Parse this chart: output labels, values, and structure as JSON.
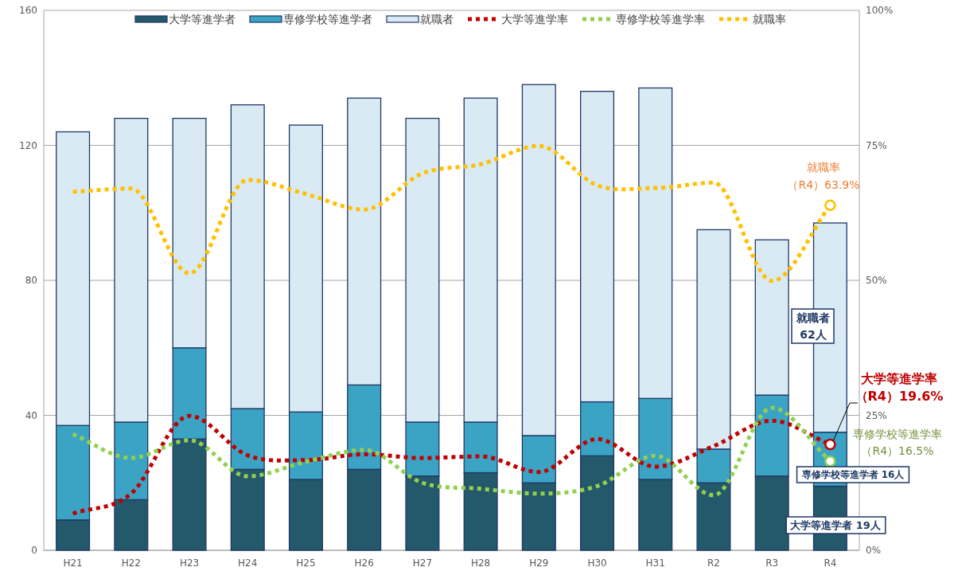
{
  "chart_data": {
    "type": "bar",
    "stacked": true,
    "categories": [
      "H21",
      "H22",
      "H23",
      "H24",
      "H25",
      "H26",
      "H27",
      "H28",
      "H29",
      "H30",
      "H31",
      "R2",
      "R3",
      "R4"
    ],
    "series": [
      {
        "name": "大学等進学者",
        "color": "#24596b",
        "values": [
          9,
          15,
          33,
          24,
          21,
          24,
          22,
          23,
          20,
          28,
          21,
          20,
          22,
          19
        ]
      },
      {
        "name": "専修学校等進学者",
        "color": "#3ba3c4",
        "values": [
          28,
          23,
          27,
          18,
          20,
          25,
          16,
          15,
          14,
          16,
          24,
          10,
          24,
          16
        ]
      },
      {
        "name": "就職者",
        "color": "#daeaf5",
        "values": [
          87,
          90,
          68,
          90,
          85,
          85,
          90,
          96,
          104,
          92,
          92,
          65,
          46,
          62
        ]
      },
      {
        "name": "大学等進学率",
        "type": "line",
        "axis": "y2",
        "color": "#c00000",
        "line_style": "dotted",
        "values": [
          6.8,
          10.5,
          24.9,
          17.6,
          16.7,
          17.8,
          17.1,
          17.4,
          14.5,
          20.6,
          15.5,
          19.3,
          24.0,
          19.6
        ]
      },
      {
        "name": "専修学校等進学率",
        "type": "line",
        "axis": "y2",
        "color": "#92d050",
        "line_style": "dotted",
        "values": [
          21.5,
          17.1,
          20.4,
          13.7,
          16.4,
          18.6,
          12.5,
          11.4,
          10.5,
          11.9,
          17.5,
          10.2,
          26.4,
          16.5
        ]
      },
      {
        "name": "就職率",
        "type": "line",
        "axis": "y2",
        "color": "#ffc000",
        "line_style": "dotted",
        "values": [
          66.4,
          67,
          51.3,
          68.6,
          66,
          63.1,
          69.8,
          71.5,
          74.9,
          67.6,
          67.1,
          68.1,
          49.9,
          63.9
        ]
      }
    ],
    "ylim": [
      0,
      160
    ],
    "yticks": [
      0,
      40,
      80,
      120,
      160
    ],
    "y2lim": [
      0,
      100
    ],
    "y2ticks": [
      {
        "value": 0,
        "label": "0%"
      },
      {
        "value": 25,
        "label": "25%"
      },
      {
        "value": 50,
        "label": "50%"
      },
      {
        "value": 75,
        "label": "75%"
      },
      {
        "value": 100,
        "label": "100%"
      }
    ],
    "grid": "y",
    "legend": "top",
    "annotations": [
      "就職率",
      "（R4）63.9%",
      "大学等進学率",
      "（R4）19.6%",
      "専修学校等進学率",
      "（R4）16.5%",
      "就職者",
      "62人",
      "専修学校等進学者 16人",
      "大学等進学者 19人"
    ]
  }
}
